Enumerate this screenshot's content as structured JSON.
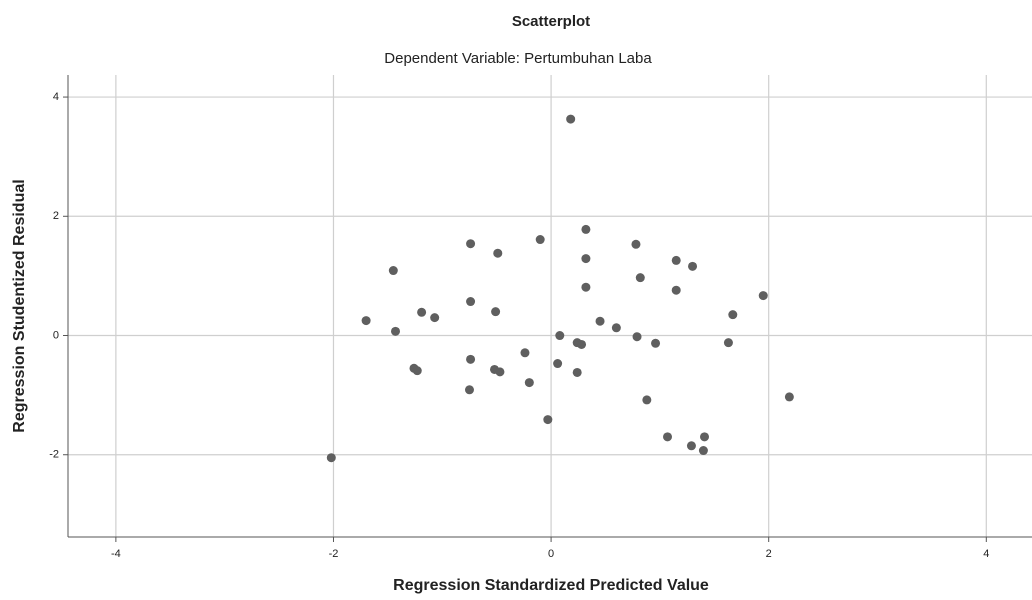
{
  "chart_data": {
    "type": "scatter",
    "title": "Scatterplot",
    "subtitle": "Dependent Variable: Pertumbuhan Laba",
    "x_label": "Regression Standardized Predicted Value",
    "y_label": "Regression Studentized Residual",
    "color": "#5f5f5f",
    "grid": true,
    "xlim": [
      -4.44,
      4.42
    ],
    "ylim": [
      -3.38,
      4.37
    ],
    "xticks": [
      -4,
      -2,
      0,
      2,
      4
    ],
    "yticks": [
      -2,
      0,
      2,
      4
    ],
    "x": [
      0.18,
      0.32,
      -0.1,
      -0.74,
      0.78,
      -0.49,
      0.32,
      1.15,
      1.3,
      -1.45,
      0.82,
      0.32,
      1.15,
      1.95,
      -0.74,
      -1.19,
      -1.07,
      -0.51,
      1.67,
      -1.7,
      0.45,
      0.6,
      -1.43,
      0.08,
      0.79,
      0.24,
      0.28,
      0.96,
      1.63,
      -0.24,
      0.06,
      -0.74,
      -1.26,
      -1.23,
      -0.52,
      -0.47,
      0.24,
      -0.2,
      -0.75,
      2.19,
      0.88,
      -0.03,
      1.07,
      1.41,
      1.29,
      1.4,
      -2.02
    ],
    "values": [
      3.63,
      1.78,
      1.61,
      1.54,
      1.53,
      1.38,
      1.29,
      1.26,
      1.16,
      1.09,
      0.97,
      0.81,
      0.76,
      0.67,
      0.57,
      0.39,
      0.3,
      0.4,
      0.35,
      0.25,
      0.24,
      0.13,
      0.07,
      0.0,
      -0.02,
      -0.12,
      -0.15,
      -0.13,
      -0.12,
      -0.29,
      -0.47,
      -0.4,
      -0.55,
      -0.59,
      -0.57,
      -0.61,
      -0.62,
      -0.79,
      -0.91,
      -1.03,
      -1.08,
      -1.41,
      -1.7,
      -1.7,
      -1.85,
      -1.93,
      -2.05
    ]
  }
}
